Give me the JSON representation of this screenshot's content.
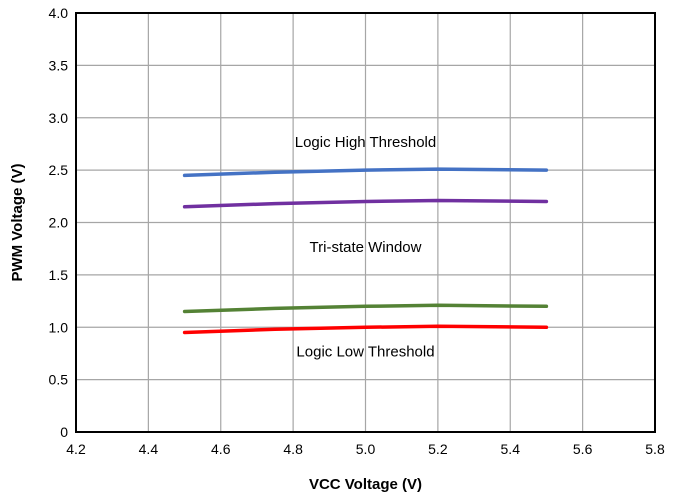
{
  "chart_data": {
    "type": "line",
    "title": "",
    "xlabel": "VCC Voltage (V)",
    "ylabel": "PWM Voltage (V)",
    "xlim": [
      4.2,
      5.8
    ],
    "ylim": [
      0,
      4.0
    ],
    "x_ticks": [
      4.2,
      4.4,
      4.6,
      4.8,
      5.0,
      5.2,
      5.4,
      5.6,
      5.8
    ],
    "x_tick_labels": [
      "4.2",
      "4.4",
      "4.6",
      "4.8",
      "5.0",
      "5.2",
      "5.4",
      "5.6",
      "5.8"
    ],
    "y_ticks": [
      0,
      0.5,
      1.0,
      1.5,
      2.0,
      2.5,
      3.0,
      3.5,
      4.0
    ],
    "y_tick_labels": [
      "0",
      "0.5",
      "1.0",
      "1.5",
      "2.0",
      "2.5",
      "3.0",
      "3.5",
      "4.0"
    ],
    "grid": true,
    "legend": "none",
    "series": [
      {
        "color": "#4472C4",
        "x": [
          4.5,
          4.75,
          5.0,
          5.2,
          5.5
        ],
        "y": [
          2.45,
          2.48,
          2.5,
          2.51,
          2.5
        ]
      },
      {
        "color": "#7030A0",
        "x": [
          4.5,
          4.75,
          5.0,
          5.2,
          5.5
        ],
        "y": [
          2.15,
          2.18,
          2.2,
          2.21,
          2.2
        ]
      },
      {
        "color": "#548235",
        "x": [
          4.5,
          4.75,
          5.0,
          5.2,
          5.5
        ],
        "y": [
          1.15,
          1.18,
          1.2,
          1.21,
          1.2
        ]
      },
      {
        "color": "#FF0000",
        "x": [
          4.5,
          4.75,
          5.0,
          5.2,
          5.5
        ],
        "y": [
          0.95,
          0.98,
          1.0,
          1.01,
          1.0
        ]
      }
    ],
    "annotations": [
      {
        "text": "Logic High Threshold",
        "x": 5.0,
        "y": 2.72
      },
      {
        "text": "Tri-state Window",
        "x": 5.0,
        "y": 1.72
      },
      {
        "text": "Logic Low Threshold",
        "x": 5.0,
        "y": 0.72
      }
    ]
  }
}
